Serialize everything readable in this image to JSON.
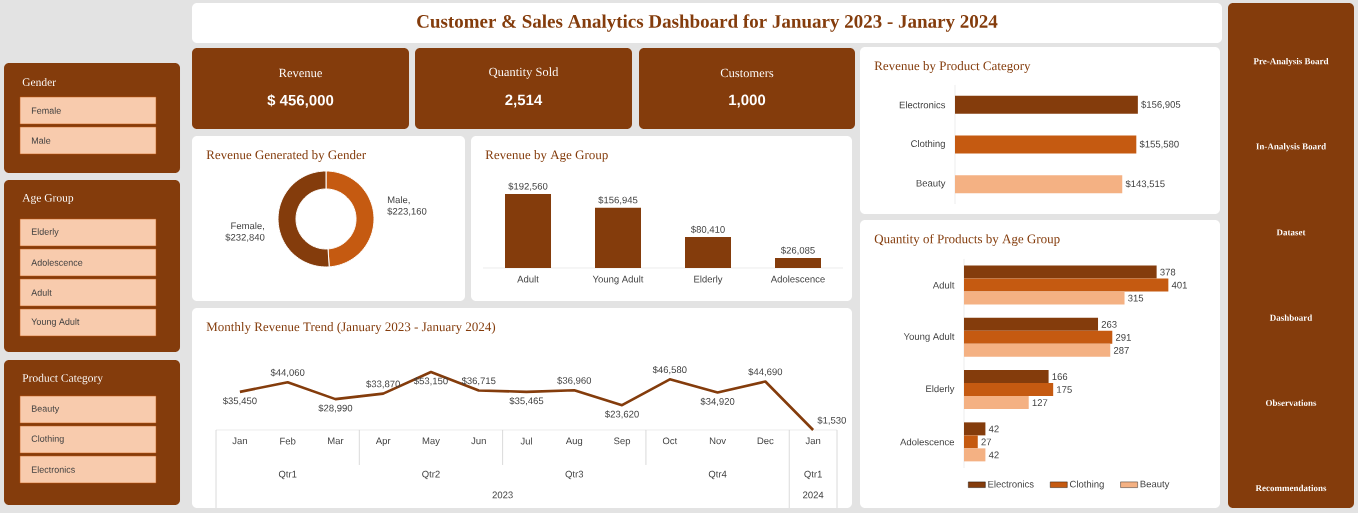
{
  "chart_data": [
    {
      "type": "other",
      "title": "Customer & Sales Analytics Dashboard for January 2023 - Janary 2024"
    },
    {
      "type": "other",
      "title": "Revenue",
      "annotations": [
        "$ 456,000"
      ]
    },
    {
      "type": "other",
      "title": "Quantity Sold",
      "annotations": [
        "2,514"
      ]
    },
    {
      "type": "other",
      "title": "Customers",
      "annotations": [
        "1,000"
      ]
    },
    {
      "type": "donut",
      "title": "Revenue Generated by Gender",
      "categories": [
        null,
        null
      ],
      "values": [
        223160,
        232840
      ],
      "colors": [
        "#c55a11",
        "#843c0c"
      ],
      "value_labels": [
        "Male, $223,160",
        "Female, $232,840"
      ]
    },
    {
      "type": "bar",
      "title": "Revenue by Age Group",
      "categories": [
        "Adult",
        "Young Adult",
        "Elderly",
        "Adolescence"
      ],
      "values": [
        192560,
        156945,
        80410,
        26085
      ],
      "color": "#843c0c",
      "value_labels": [
        "$192,560",
        "$156,945",
        "$80,410",
        "$26,085"
      ]
    },
    {
      "type": "bar",
      "orientation": "horizontal",
      "title": "Revenue by Product Category",
      "categories": [
        "Electronics",
        "Clothing",
        "Beauty"
      ],
      "values": [
        156905,
        155580,
        143515
      ],
      "colors": [
        "#843c0c",
        "#c55a11",
        "#f4b183"
      ],
      "value_labels": [
        "$156,905",
        "$155,580",
        "$143,515"
      ]
    },
    {
      "type": "line",
      "title": "Monthly Revenue Trend (January 2023 - January 2024)",
      "categories": [
        "Jan",
        "Feb",
        "Mar",
        "Apr",
        "May",
        "Jun",
        "Jul",
        "Aug",
        "Sep",
        "Oct",
        "Nov",
        "Dec",
        "Jan"
      ],
      "values": [
        35450,
        44060,
        28990,
        33870,
        53150,
        36715,
        35465,
        36960,
        23620,
        46580,
        34920,
        44690,
        1530
      ],
      "color": "#843c0c",
      "value_labels": [
        "$35,450",
        "$44,060",
        "$28,990",
        "$33,870",
        "$53,150",
        "$36,715",
        "$35,465",
        "$36,960",
        "$23,620",
        "$46,580",
        "$34,920",
        "$44,690",
        "$1,530"
      ],
      "annotations": [
        "Qtr1",
        "Qtr2",
        "Qtr3",
        "Qtr4",
        "Qtr1",
        "2023",
        "2024"
      ]
    },
    {
      "type": "bar",
      "orientation": "horizontal",
      "title": "Quantity of Products by Age Group",
      "categories": [
        "Adult",
        "Young Adult",
        "Elderly",
        "Adolescence"
      ],
      "series": [
        {
          "name": "Electronics",
          "color": "#843c0c",
          "values": [
            378,
            263,
            166,
            42
          ]
        },
        {
          "name": "Clothing",
          "color": "#c55a11",
          "values": [
            401,
            291,
            175,
            27
          ]
        },
        {
          "name": "Beauty",
          "color": "#f4b183",
          "values": [
            315,
            287,
            127,
            42
          ]
        }
      ],
      "data_labels": true,
      "legend": "bottom"
    },
    {
      "type": "other",
      "title": "Gender",
      "categories": [
        "Female",
        "Male"
      ]
    },
    {
      "type": "other",
      "title": "Age Group",
      "categories": [
        "Elderly",
        "Adolescence",
        "Adult",
        "Young Adult"
      ]
    },
    {
      "type": "other",
      "title": "Product Category",
      "categories": [
        "Beauty",
        "Clothing",
        "Electronics"
      ]
    },
    {
      "type": "other",
      "categories": [
        "Pre-Analysis Board",
        "In-Analysis Board",
        "Dataset",
        "Dashboard",
        "Observations",
        "Recommendations"
      ]
    }
  ]
}
